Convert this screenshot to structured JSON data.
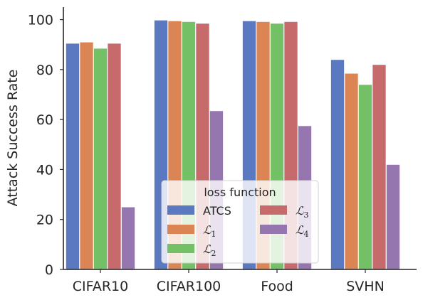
{
  "chart_data": {
    "type": "bar",
    "ylabel": "Attack Success Rate",
    "xlabel": "",
    "ylim": [
      0,
      105
    ],
    "yticks": [
      0,
      20,
      40,
      60,
      80,
      100
    ],
    "categories": [
      "CIFAR10",
      "CIFAR100",
      "Food",
      "SVHN"
    ],
    "series": [
      {
        "name": "ATCS",
        "color": "#5a79c1",
        "values": [
          90.5,
          99.8,
          99.5,
          84.0
        ]
      },
      {
        "name": "L1",
        "display": "ℒ",
        "sub": "1",
        "color": "#dc8554",
        "values": [
          91.0,
          99.5,
          99.2,
          78.5
        ]
      },
      {
        "name": "L2",
        "display": "ℒ",
        "sub": "2",
        "color": "#73c066",
        "values": [
          88.5,
          99.2,
          98.5,
          74.0
        ]
      },
      {
        "name": "L3",
        "display": "ℒ",
        "sub": "3",
        "color": "#c66a6b",
        "values": [
          90.5,
          98.5,
          99.2,
          82.0
        ]
      },
      {
        "name": "L4",
        "display": "ℒ",
        "sub": "4",
        "color": "#9576ae",
        "values": [
          25.0,
          63.5,
          57.5,
          42.0
        ]
      }
    ],
    "legend": {
      "title": "loss function",
      "placement": "lower-center"
    },
    "grid": false
  }
}
